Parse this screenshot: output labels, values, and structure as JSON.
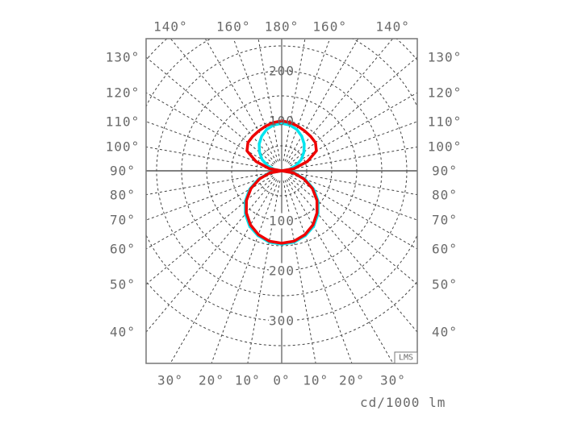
{
  "chart_data": {
    "type": "polar",
    "unit_label": "cd/1000 lm",
    "watermark": "LMS",
    "radial_ticks": [
      100,
      200,
      300
    ],
    "radial_grid_step": 50,
    "radial_max": 350,
    "angle_grid_step_deg": 10,
    "side_angle_labels": [
      "130°",
      "120°",
      "110°",
      "100°",
      "90°",
      "80°",
      "70°",
      "60°",
      "50°",
      "40°"
    ],
    "side_angle_values": [
      130,
      120,
      110,
      100,
      90,
      80,
      70,
      60,
      50,
      40
    ],
    "top_angle_labels": [
      "140°",
      "160°",
      "180°",
      "160°",
      "140°"
    ],
    "top_angle_values": [
      -140,
      -160,
      180,
      160,
      140
    ],
    "bottom_angle_labels": [
      "30°",
      "20°",
      "10°",
      "0°",
      "10°",
      "20°",
      "30°"
    ],
    "bottom_angle_values": [
      -30,
      -20,
      -10,
      0,
      10,
      20,
      30
    ],
    "gamma": [
      0,
      10,
      20,
      30,
      40,
      50,
      60,
      70,
      80,
      90,
      100,
      110,
      120,
      130,
      140,
      150,
      160,
      170,
      180
    ],
    "series": [
      {
        "color": "#00e5ee",
        "values": [
          147,
          145,
          138,
          128,
          113,
          95,
          74,
          50,
          26,
          0,
          15,
          30,
          45,
          58,
          70,
          80,
          88,
          93,
          95
        ]
      },
      {
        "color": "#ee0000",
        "values": [
          145,
          143,
          136,
          125,
          110,
          92,
          71,
          47,
          24,
          0,
          25,
          55,
          80,
          88,
          90,
          92,
          95,
          98,
          100
        ]
      }
    ],
    "grid_color": "#444444",
    "frame_color": "#777777"
  }
}
